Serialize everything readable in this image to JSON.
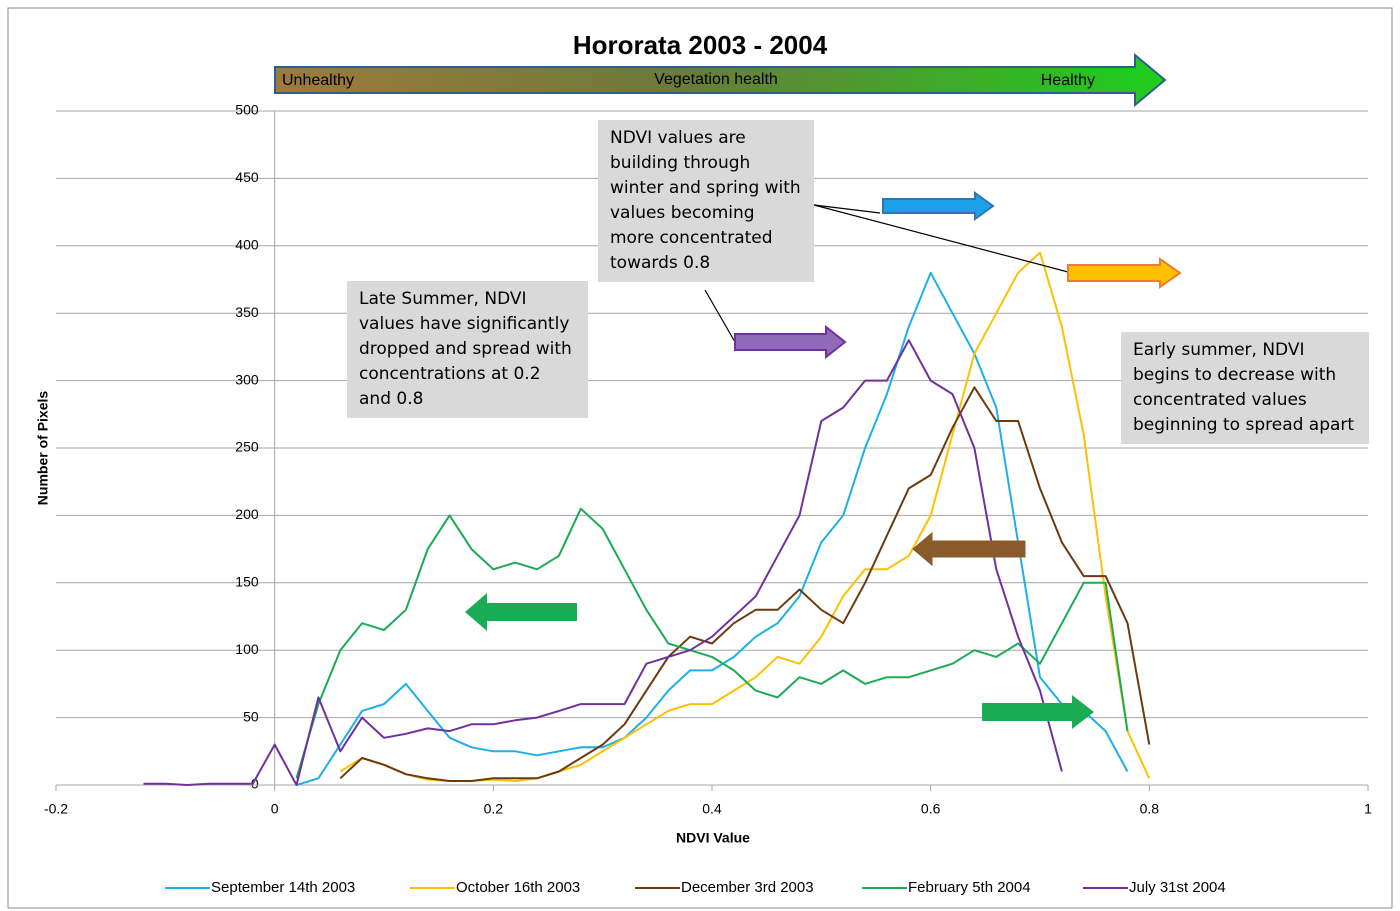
{
  "chart_data": {
    "type": "line",
    "title": "Hororata 2003 - 2004",
    "health_bar": {
      "left": "Unhealthy",
      "middle": "Vegetation health",
      "right": "Healthy"
    },
    "x_label": "NDVI Value",
    "y_label": "Number of Pixels",
    "xlim": [
      -0.2,
      1
    ],
    "xticks": [
      -0.2,
      0,
      0.2,
      0.4,
      0.6,
      0.8,
      1
    ],
    "ylim": [
      0,
      500
    ],
    "yticks": [
      0,
      50,
      100,
      150,
      200,
      250,
      300,
      350,
      400,
      450,
      500
    ],
    "grid": true,
    "legend": "bottom",
    "x": [
      -0.12,
      -0.1,
      -0.08,
      -0.06,
      -0.04,
      -0.02,
      0,
      0.02,
      0.04,
      0.06,
      0.08,
      0.1,
      0.12,
      0.14,
      0.16,
      0.18,
      0.2,
      0.22,
      0.24,
      0.26,
      0.28,
      0.3,
      0.32,
      0.34,
      0.36,
      0.38,
      0.4,
      0.42,
      0.44,
      0.46,
      0.48,
      0.5,
      0.52,
      0.54,
      0.56,
      0.58,
      0.6,
      0.62,
      0.64,
      0.66,
      0.68,
      0.7,
      0.72,
      0.74,
      0.76,
      0.78,
      0.8
    ],
    "series": [
      {
        "name": "September 14th 2003",
        "color": "#1cb0e8",
        "values": [
          null,
          null,
          null,
          null,
          null,
          null,
          null,
          0,
          5,
          30,
          55,
          60,
          75,
          55,
          35,
          28,
          25,
          25,
          22,
          25,
          28,
          28,
          35,
          50,
          70,
          85,
          85,
          95,
          110,
          120,
          140,
          180,
          200,
          250,
          290,
          340,
          380,
          350,
          320,
          280,
          180,
          80,
          60,
          55,
          40,
          10,
          null
        ]
      },
      {
        "name": "October 16th 2003",
        "color": "#ffc000",
        "values": [
          null,
          null,
          null,
          null,
          null,
          null,
          null,
          null,
          null,
          10,
          20,
          15,
          8,
          4,
          3,
          3,
          4,
          3,
          5,
          10,
          15,
          25,
          35,
          45,
          55,
          60,
          60,
          70,
          80,
          95,
          90,
          110,
          140,
          160,
          160,
          170,
          200,
          260,
          320,
          350,
          380,
          395,
          340,
          260,
          140,
          40,
          5
        ]
      },
      {
        "name": "December 3rd 2003",
        "color": "#6b3a0f",
        "values": [
          null,
          null,
          null,
          null,
          null,
          null,
          null,
          null,
          null,
          5,
          20,
          15,
          8,
          5,
          3,
          3,
          5,
          5,
          5,
          10,
          20,
          30,
          45,
          70,
          95,
          110,
          105,
          120,
          130,
          130,
          145,
          130,
          120,
          150,
          185,
          220,
          230,
          265,
          295,
          270,
          270,
          220,
          180,
          155,
          155,
          120,
          30
        ]
      },
      {
        "name": "February 5th 2004",
        "color": "#1aab55",
        "values": [
          null,
          null,
          null,
          null,
          null,
          null,
          null,
          5,
          60,
          100,
          120,
          115,
          130,
          175,
          200,
          175,
          160,
          165,
          160,
          170,
          205,
          190,
          160,
          130,
          105,
          100,
          95,
          85,
          70,
          65,
          80,
          75,
          85,
          75,
          80,
          80,
          85,
          90,
          100,
          95,
          105,
          90,
          120,
          150,
          150,
          40,
          null
        ]
      },
      {
        "name": "July 31st 2004",
        "color": "#7030a0",
        "values": [
          1,
          1,
          0,
          1,
          1,
          1,
          30,
          0,
          65,
          25,
          50,
          35,
          38,
          42,
          40,
          45,
          45,
          48,
          50,
          55,
          60,
          60,
          60,
          90,
          95,
          100,
          110,
          125,
          140,
          170,
          200,
          270,
          280,
          300,
          300,
          330,
          300,
          290,
          250,
          160,
          110,
          70,
          10,
          null,
          null,
          null,
          null
        ]
      }
    ],
    "annotations": [
      "NDVI values are building through winter and spring with values becoming more concentrated towards 0.8",
      "Late Summer, NDVI values have significantly dropped and spread with concentrations at 0.2 and 0.8",
      "Early summer, NDVI begins to decrease with concentrated values beginning to spread apart"
    ]
  }
}
